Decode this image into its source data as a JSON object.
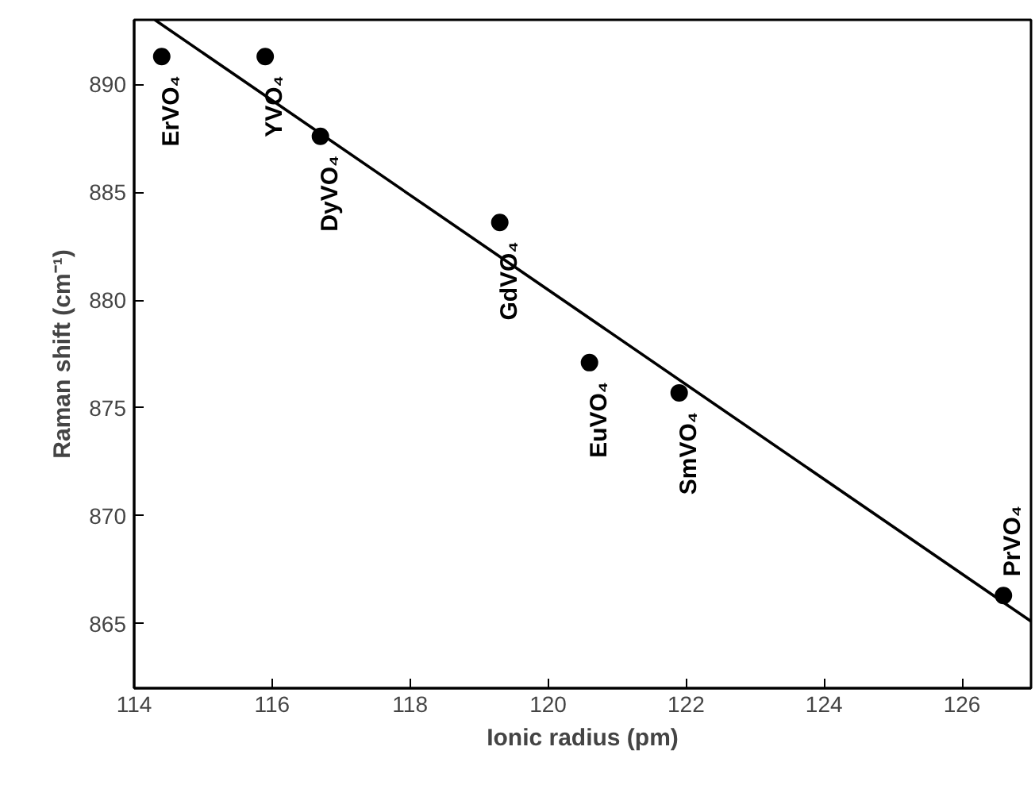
{
  "chart_data": {
    "type": "scatter",
    "xlabel": "Ionic radius (pm)",
    "ylabel": "Raman shift (cm⁻¹)",
    "x": [
      114.4,
      115.9,
      116.7,
      119.3,
      120.6,
      121.9,
      126.6
    ],
    "series": [
      {
        "color": "#000000",
        "values": [
          891.3,
          891.3,
          887.6,
          883.6,
          877.1,
          875.7,
          866.3
        ],
        "marker": "circle"
      },
      {
        "type": "line",
        "color": "#000000",
        "x": [
          114.3,
          127.0
        ],
        "values": [
          893.0,
          865.1
        ],
        "line_style": "solid"
      }
    ],
    "annotations": [
      {
        "text": "ErVO₄",
        "x": 114.4,
        "y": 891.3
      },
      {
        "text": "YVO₄",
        "x": 115.9,
        "y": 891.3
      },
      {
        "text": "DyVO₄",
        "x": 116.7,
        "y": 887.6
      },
      {
        "text": "GdVO₄",
        "x": 119.3,
        "y": 883.6
      },
      {
        "text": "EuVO₄",
        "x": 120.6,
        "y": 877.1
      },
      {
        "text": "SmVO₄",
        "x": 121.9,
        "y": 875.7
      },
      {
        "text": "PrVO₄",
        "x": 126.6,
        "y": 866.3
      }
    ],
    "xlim": [
      114,
      127
    ],
    "ylim": [
      862,
      893
    ],
    "xticks": [
      114,
      116,
      118,
      120,
      122,
      124,
      126
    ],
    "yticks": [
      865,
      870,
      875,
      880,
      885,
      890
    ],
    "grid": false
  }
}
